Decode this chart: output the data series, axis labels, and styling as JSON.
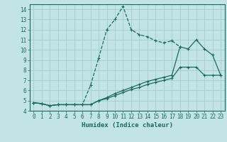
{
  "xlabel": "Humidex (Indice chaleur)",
  "ylabel": "",
  "background_color": "#c2e4e4",
  "grid_color": "#a8d0d0",
  "line_color": "#1a6b5a",
  "xlim": [
    -0.5,
    23.5
  ],
  "ylim": [
    4,
    14.5
  ],
  "yticks": [
    4,
    5,
    6,
    7,
    8,
    9,
    10,
    11,
    12,
    13,
    14
  ],
  "xticks": [
    0,
    1,
    2,
    3,
    4,
    5,
    6,
    7,
    8,
    9,
    10,
    11,
    12,
    13,
    14,
    15,
    16,
    17,
    18,
    19,
    20,
    21,
    22,
    23
  ],
  "series": [
    {
      "x": [
        0,
        1,
        2,
        3,
        4,
        5,
        6,
        7,
        8,
        9,
        10,
        11,
        12,
        13,
        14,
        15,
        16,
        17,
        18
      ],
      "y": [
        4.8,
        4.7,
        4.5,
        4.6,
        4.6,
        4.6,
        4.6,
        6.5,
        9.2,
        12.0,
        13.0,
        14.3,
        12.0,
        11.5,
        11.3,
        10.9,
        10.7,
        10.9,
        10.3
      ],
      "linestyle": "--"
    },
    {
      "x": [
        0,
        1,
        2,
        3,
        4,
        5,
        6,
        7,
        8,
        9,
        10,
        11,
        12,
        13,
        14,
        15,
        16,
        17,
        18,
        19,
        20,
        21,
        22,
        23
      ],
      "y": [
        4.8,
        4.7,
        4.5,
        4.6,
        4.6,
        4.6,
        4.6,
        4.6,
        5.0,
        5.3,
        5.7,
        6.0,
        6.3,
        6.6,
        6.9,
        7.1,
        7.3,
        7.5,
        10.3,
        10.1,
        11.0,
        10.1,
        9.5,
        7.5
      ],
      "linestyle": "-"
    },
    {
      "x": [
        0,
        1,
        2,
        3,
        4,
        5,
        6,
        7,
        8,
        9,
        10,
        11,
        12,
        13,
        14,
        15,
        16,
        17,
        18,
        19,
        20,
        21,
        22,
        23
      ],
      "y": [
        4.8,
        4.7,
        4.5,
        4.6,
        4.6,
        4.6,
        4.6,
        4.6,
        5.0,
        5.2,
        5.5,
        5.8,
        6.1,
        6.3,
        6.6,
        6.8,
        7.0,
        7.2,
        8.3,
        8.3,
        8.3,
        7.5,
        7.5,
        7.5
      ],
      "linestyle": "-"
    }
  ]
}
